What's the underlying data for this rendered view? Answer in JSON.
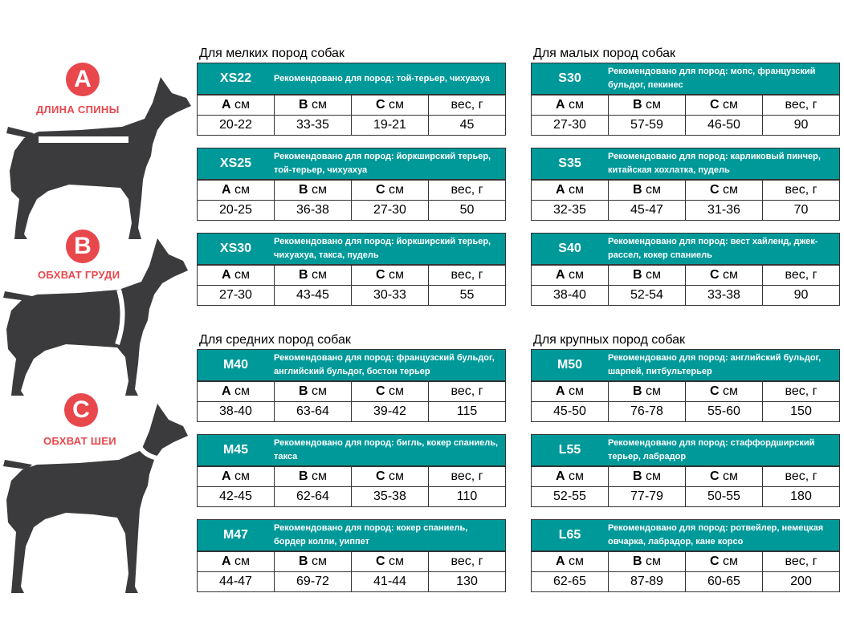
{
  "badges": [
    {
      "letter": "A",
      "label": "ДЛИНА СПИНЫ"
    },
    {
      "letter": "B",
      "label": "ОБХВАТ ГРУДИ"
    },
    {
      "letter": "C",
      "label": "ОБХВАТ ШЕИ"
    }
  ],
  "sections": {
    "small": "Для мелких пород собак",
    "little": "Для малых пород собак",
    "medium": "Для средних пород собак",
    "large": "Для крупных пород собак"
  },
  "headers": {
    "a_letter": "А",
    "a_unit": " см",
    "b_letter": "В",
    "b_unit": " см",
    "c_letter": "С",
    "c_unit": " см",
    "weight": "вес, г"
  },
  "cards": [
    {
      "code": "XS22",
      "rec": "Рекомендовано для пород: той-терьер, чихуахуа",
      "a": "20-22",
      "b": "33-35",
      "c": "19-21",
      "w": "45"
    },
    {
      "code": "XS25",
      "rec": "Рекомендовано для пород: йоркширский терьер, той-терьер, чихуахуа",
      "a": "20-25",
      "b": "36-38",
      "c": "27-30",
      "w": "50"
    },
    {
      "code": "XS30",
      "rec": "Рекомендовано для пород: йоркширский терьер, чихуахуа, такса, пудель",
      "a": "27-30",
      "b": "43-45",
      "c": "30-33",
      "w": "55"
    },
    {
      "code": "S30",
      "rec": "Рекомендовано для пород: мопс, французский бульдог, пекинес",
      "a": "27-30",
      "b": "57-59",
      "c": "46-50",
      "w": "90"
    },
    {
      "code": "S35",
      "rec": "Рекомендовано для пород: карликовый пинчер, китайская хохлатка, пудель",
      "a": "32-35",
      "b": "45-47",
      "c": "31-36",
      "w": "70"
    },
    {
      "code": "S40",
      "rec": "Рекомендовано для пород: вест хайленд, джек-рассел, кокер спаниель",
      "a": "38-40",
      "b": "52-54",
      "c": "33-38",
      "w": "90"
    },
    {
      "code": "M40",
      "rec": "Рекомендовано для пород: французский бульдог, английский бульдог, бостон терьер",
      "a": "38-40",
      "b": "63-64",
      "c": "39-42",
      "w": "115"
    },
    {
      "code": "M45",
      "rec": "Рекомендовано для пород: бигль, кокер спаниель, такса",
      "a": "42-45",
      "b": "62-64",
      "c": "35-38",
      "w": "110"
    },
    {
      "code": "M47",
      "rec": "Рекомендовано для пород: кокер спаниель, бордер колли, уиппет",
      "a": "44-47",
      "b": "69-72",
      "c": "41-44",
      "w": "130"
    },
    {
      "code": "M50",
      "rec": "Рекомендовано для пород: английский бульдог, шарпей, питбультерьер",
      "a": "45-50",
      "b": "76-78",
      "c": "55-60",
      "w": "150"
    },
    {
      "code": "L55",
      "rec": "Рекомендовано для пород: стаффордширский терьер, лабрадор",
      "a": "52-55",
      "b": "77-79",
      "c": "50-55",
      "w": "180"
    },
    {
      "code": "L65",
      "rec": "Рекомендовано для пород: ротвейлер, немецкая овчарка, лабрадор, кане корсо",
      "a": "62-65",
      "b": "87-89",
      "c": "60-65",
      "w": "200"
    }
  ],
  "colors": {
    "teal": "#00999a",
    "red": "#e8474c",
    "dog": "#3b3b3d"
  }
}
